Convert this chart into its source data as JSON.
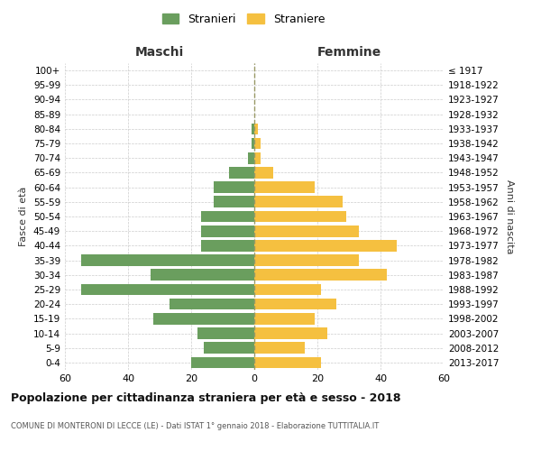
{
  "age_groups": [
    "0-4",
    "5-9",
    "10-14",
    "15-19",
    "20-24",
    "25-29",
    "30-34",
    "35-39",
    "40-44",
    "45-49",
    "50-54",
    "55-59",
    "60-64",
    "65-69",
    "70-74",
    "75-79",
    "80-84",
    "85-89",
    "90-94",
    "95-99",
    "100+"
  ],
  "birth_years": [
    "2013-2017",
    "2008-2012",
    "2003-2007",
    "1998-2002",
    "1993-1997",
    "1988-1992",
    "1983-1987",
    "1978-1982",
    "1973-1977",
    "1968-1972",
    "1963-1967",
    "1958-1962",
    "1953-1957",
    "1948-1952",
    "1943-1947",
    "1938-1942",
    "1933-1937",
    "1928-1932",
    "1923-1927",
    "1918-1922",
    "≤ 1917"
  ],
  "males": [
    20,
    16,
    18,
    32,
    27,
    55,
    33,
    55,
    17,
    17,
    17,
    13,
    13,
    8,
    2,
    1,
    1,
    0,
    0,
    0,
    0
  ],
  "females": [
    21,
    16,
    23,
    19,
    26,
    21,
    42,
    33,
    45,
    33,
    29,
    28,
    19,
    6,
    2,
    2,
    1,
    0,
    0,
    0,
    0
  ],
  "male_color": "#6a9e5e",
  "female_color": "#f5c040",
  "background_color": "#ffffff",
  "grid_color": "#cccccc",
  "title": "Popolazione per cittadinanza straniera per età e sesso - 2018",
  "subtitle": "COMUNE DI MONTERONI DI LECCE (LE) - Dati ISTAT 1° gennaio 2018 - Elaborazione TUTTITALIA.IT",
  "xlabel_left": "Maschi",
  "xlabel_right": "Femmine",
  "ylabel_left": "Fasce di età",
  "ylabel_right": "Anni di nascita",
  "legend_male": "Stranieri",
  "legend_female": "Straniere",
  "xlim": 60
}
